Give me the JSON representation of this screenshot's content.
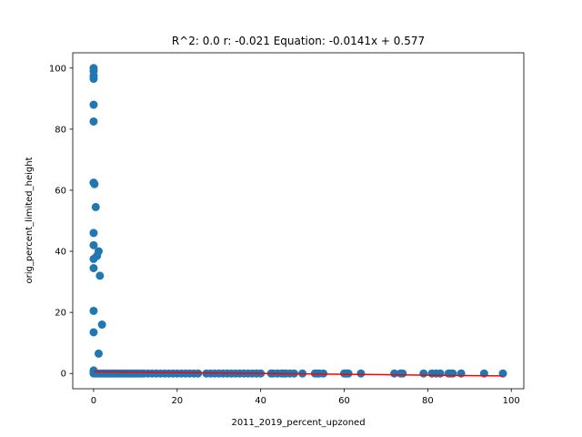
{
  "chart_data": {
    "type": "scatter",
    "title": "R^2: 0.0 r: -0.021 Equation: -0.0141x + 0.577",
    "xlabel": "2011_2019_percent_upzoned",
    "ylabel": "orig_percent_limited_height",
    "xlim": [
      -5,
      103
    ],
    "ylim": [
      -5,
      105
    ],
    "x_ticks": [
      0,
      20,
      40,
      60,
      80,
      100
    ],
    "y_ticks": [
      0,
      20,
      40,
      60,
      80,
      100
    ],
    "grid": false,
    "colors": {
      "points": "#1f77b4",
      "fit_line": "#ff0000"
    },
    "fit_line": {
      "slope": -0.0141,
      "intercept": 0.577,
      "x_range": [
        0,
        98
      ]
    },
    "points": [
      {
        "x": 0,
        "y": 100
      },
      {
        "x": 0,
        "y": 99
      },
      {
        "x": 0,
        "y": 97.5
      },
      {
        "x": 0,
        "y": 96.5
      },
      {
        "x": 0,
        "y": 88
      },
      {
        "x": 0,
        "y": 82.5
      },
      {
        "x": 0,
        "y": 62.5
      },
      {
        "x": 0.2,
        "y": 62
      },
      {
        "x": 0.5,
        "y": 54.5
      },
      {
        "x": 0,
        "y": 46
      },
      {
        "x": 0,
        "y": 42
      },
      {
        "x": 1.2,
        "y": 40
      },
      {
        "x": 0.8,
        "y": 38.5
      },
      {
        "x": 0,
        "y": 37.5
      },
      {
        "x": 0,
        "y": 34.5
      },
      {
        "x": 1.5,
        "y": 32
      },
      {
        "x": 0,
        "y": 20.5
      },
      {
        "x": 2,
        "y": 16
      },
      {
        "x": 0,
        "y": 13.5
      },
      {
        "x": 1.2,
        "y": 6.5
      },
      {
        "x": 0,
        "y": 1
      },
      {
        "x": 0,
        "y": 0.5
      },
      {
        "x": 0,
        "y": 0
      },
      {
        "x": 0.5,
        "y": 0
      },
      {
        "x": 1,
        "y": 0
      },
      {
        "x": 1.5,
        "y": 0
      },
      {
        "x": 2,
        "y": 0
      },
      {
        "x": 2.5,
        "y": 0
      },
      {
        "x": 3,
        "y": 0
      },
      {
        "x": 3.5,
        "y": 0
      },
      {
        "x": 4,
        "y": 0
      },
      {
        "x": 4.5,
        "y": 0
      },
      {
        "x": 5,
        "y": 0
      },
      {
        "x": 5.5,
        "y": 0
      },
      {
        "x": 6,
        "y": 0
      },
      {
        "x": 6.5,
        "y": 0
      },
      {
        "x": 7,
        "y": 0
      },
      {
        "x": 7.5,
        "y": 0
      },
      {
        "x": 8,
        "y": 0
      },
      {
        "x": 8.5,
        "y": 0
      },
      {
        "x": 9,
        "y": 0
      },
      {
        "x": 9.5,
        "y": 0
      },
      {
        "x": 10,
        "y": 0
      },
      {
        "x": 10.5,
        "y": 0
      },
      {
        "x": 11,
        "y": 0
      },
      {
        "x": 11.5,
        "y": 0
      },
      {
        "x": 12,
        "y": 0
      },
      {
        "x": 13,
        "y": 0
      },
      {
        "x": 14,
        "y": 0
      },
      {
        "x": 15,
        "y": 0
      },
      {
        "x": 16,
        "y": 0
      },
      {
        "x": 17,
        "y": 0
      },
      {
        "x": 18,
        "y": 0
      },
      {
        "x": 19,
        "y": 0
      },
      {
        "x": 20,
        "y": 0
      },
      {
        "x": 21,
        "y": 0
      },
      {
        "x": 22,
        "y": 0
      },
      {
        "x": 23,
        "y": 0
      },
      {
        "x": 24,
        "y": 0
      },
      {
        "x": 25,
        "y": 0
      },
      {
        "x": 27,
        "y": 0
      },
      {
        "x": 28,
        "y": 0
      },
      {
        "x": 29,
        "y": 0
      },
      {
        "x": 30,
        "y": 0
      },
      {
        "x": 31,
        "y": 0
      },
      {
        "x": 32,
        "y": 0
      },
      {
        "x": 33,
        "y": 0
      },
      {
        "x": 34,
        "y": 0
      },
      {
        "x": 35,
        "y": 0
      },
      {
        "x": 36,
        "y": 0
      },
      {
        "x": 37,
        "y": 0
      },
      {
        "x": 38,
        "y": 0
      },
      {
        "x": 39,
        "y": 0
      },
      {
        "x": 40,
        "y": 0
      },
      {
        "x": 42.5,
        "y": 0
      },
      {
        "x": 43,
        "y": 0
      },
      {
        "x": 44,
        "y": 0
      },
      {
        "x": 45,
        "y": 0
      },
      {
        "x": 45.5,
        "y": 0
      },
      {
        "x": 46,
        "y": 0
      },
      {
        "x": 47,
        "y": 0
      },
      {
        "x": 48,
        "y": 0
      },
      {
        "x": 50,
        "y": 0
      },
      {
        "x": 53,
        "y": 0
      },
      {
        "x": 53.5,
        "y": 0
      },
      {
        "x": 54,
        "y": 0
      },
      {
        "x": 55,
        "y": 0
      },
      {
        "x": 60,
        "y": 0
      },
      {
        "x": 60.5,
        "y": 0
      },
      {
        "x": 61,
        "y": 0
      },
      {
        "x": 64,
        "y": 0
      },
      {
        "x": 72,
        "y": 0
      },
      {
        "x": 73.5,
        "y": 0
      },
      {
        "x": 74,
        "y": 0
      },
      {
        "x": 79,
        "y": 0
      },
      {
        "x": 81,
        "y": 0
      },
      {
        "x": 82,
        "y": 0
      },
      {
        "x": 83,
        "y": 0
      },
      {
        "x": 85,
        "y": 0
      },
      {
        "x": 85.5,
        "y": 0
      },
      {
        "x": 86,
        "y": 0
      },
      {
        "x": 88,
        "y": 0
      },
      {
        "x": 93.5,
        "y": 0
      },
      {
        "x": 98,
        "y": 0
      }
    ]
  }
}
